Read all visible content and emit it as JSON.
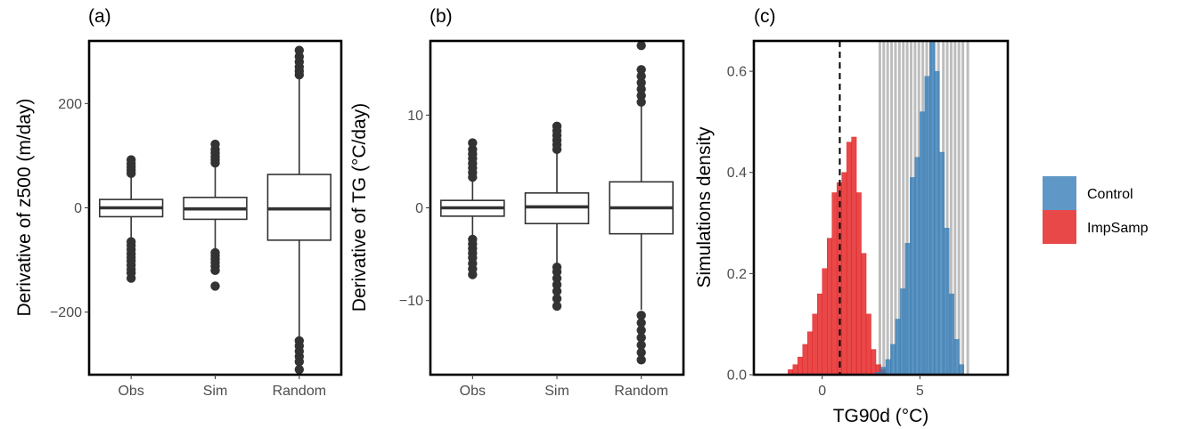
{
  "chart_data": [
    {
      "type": "boxplot",
      "panel": "(a)",
      "ylabel": "Derivative of z500 (m/day)",
      "xlabel": "",
      "ylim": [
        -320,
        320
      ],
      "yticks": [
        -200,
        0,
        200
      ],
      "categories": [
        "Obs",
        "Sim",
        "Random"
      ],
      "boxes": [
        {
          "q1": -17,
          "median": 0,
          "q3": 16,
          "whisker_low": -58,
          "whisker_high": 60,
          "outliers": [
            -135,
            -125,
            -118,
            -110,
            -102,
            -95,
            -88,
            -80,
            -72,
            -65,
            66,
            72,
            78,
            85,
            92
          ]
        },
        {
          "q1": -22,
          "median": -2,
          "q3": 20,
          "whisker_low": -80,
          "whisker_high": 82,
          "outliers": [
            -150,
            -120,
            -112,
            -105,
            -98,
            -92,
            -86,
            86,
            92,
            98,
            105,
            112,
            122
          ]
        },
        {
          "q1": -62,
          "median": -2,
          "q3": 64,
          "whisker_low": -248,
          "whisker_high": 250,
          "outliers": [
            -310,
            -295,
            -285,
            -275,
            -265,
            -255,
            255,
            262,
            270,
            280,
            290,
            302
          ]
        }
      ]
    },
    {
      "type": "boxplot",
      "panel": "(b)",
      "ylabel": "Derivative of TG (°C/day)",
      "xlabel": "",
      "ylim": [
        -18,
        18
      ],
      "yticks": [
        -10,
        0,
        10
      ],
      "categories": [
        "Obs",
        "Sim",
        "Random"
      ],
      "boxes": [
        {
          "q1": -0.9,
          "median": 0,
          "q3": 0.8,
          "whisker_low": -3.0,
          "whisker_high": 3.0,
          "outliers": [
            -7.2,
            -6.6,
            -6.0,
            -5.4,
            -4.9,
            -4.4,
            -3.9,
            -3.4,
            3.3,
            3.8,
            4.3,
            4.8,
            5.3,
            5.8,
            6.3,
            7.0
          ]
        },
        {
          "q1": -1.7,
          "median": 0.1,
          "q3": 1.6,
          "whisker_low": -6.0,
          "whisker_high": 6.0,
          "outliers": [
            -10.6,
            -9.8,
            -9.0,
            -8.3,
            -7.6,
            -6.9,
            -6.4,
            6.3,
            6.8,
            7.3,
            7.8,
            8.3,
            8.8
          ]
        },
        {
          "q1": -2.8,
          "median": 0,
          "q3": 2.8,
          "whisker_low": -11.0,
          "whisker_high": 11.0,
          "outliers": [
            -16.4,
            -15.6,
            -14.8,
            -14.0,
            -13.2,
            -12.4,
            -11.6,
            11.4,
            12.1,
            12.8,
            13.5,
            14.2,
            14.9,
            17.5
          ]
        }
      ]
    },
    {
      "type": "histogram",
      "panel": "(c)",
      "xlabel": "TG90d (°C)",
      "ylabel": "Simulations density",
      "xlim": [
        -3.5,
        9.5
      ],
      "ylim": [
        0,
        0.66
      ],
      "xticks": [
        0,
        5
      ],
      "yticks": [
        0,
        0.2,
        0.4,
        0.6
      ],
      "ytick_labels": [
        "0.0",
        "0.2",
        "0.4",
        "0.6"
      ],
      "bin_width": 0.25,
      "obs_dashed_x": 0.9,
      "gray_vlines": [
        2.95,
        3.15,
        3.35,
        3.55,
        3.75,
        3.95,
        4.15,
        4.35,
        4.55,
        4.75,
        4.95,
        5.15,
        5.35,
        5.55,
        5.75,
        5.95,
        6.2,
        6.4,
        6.6,
        6.8,
        7.0,
        7.2,
        7.45
      ],
      "series": [
        {
          "name": "ImpSamp",
          "color": "#E41A1C",
          "bins": [
            [
              -1.75,
              0.01
            ],
            [
              -1.5,
              0.02
            ],
            [
              -1.25,
              0.035
            ],
            [
              -1.0,
              0.06
            ],
            [
              -0.75,
              0.085
            ],
            [
              -0.5,
              0.12
            ],
            [
              -0.25,
              0.16
            ],
            [
              0.0,
              0.21
            ],
            [
              0.25,
              0.27
            ],
            [
              0.5,
              0.36
            ],
            [
              0.75,
              0.38
            ],
            [
              1.0,
              0.4
            ],
            [
              1.25,
              0.46
            ],
            [
              1.5,
              0.47
            ],
            [
              1.75,
              0.36
            ],
            [
              2.0,
              0.24
            ],
            [
              2.25,
              0.12
            ],
            [
              2.5,
              0.05
            ],
            [
              2.75,
              0.02
            ],
            [
              3.0,
              0.01
            ]
          ]
        },
        {
          "name": "Control",
          "color": "#377EB8",
          "bins": [
            [
              2.75,
              0.005
            ],
            [
              3.0,
              0.015
            ],
            [
              3.25,
              0.03
            ],
            [
              3.5,
              0.06
            ],
            [
              3.75,
              0.11
            ],
            [
              4.0,
              0.17
            ],
            [
              4.25,
              0.26
            ],
            [
              4.5,
              0.39
            ],
            [
              4.75,
              0.43
            ],
            [
              5.0,
              0.52
            ],
            [
              5.25,
              0.59
            ],
            [
              5.5,
              0.66
            ],
            [
              5.75,
              0.6
            ],
            [
              6.0,
              0.44
            ],
            [
              6.25,
              0.29
            ],
            [
              6.5,
              0.16
            ],
            [
              6.75,
              0.07
            ],
            [
              7.0,
              0.02
            ]
          ]
        }
      ],
      "legend": {
        "position": "right",
        "entries": [
          "Control",
          "ImpSamp"
        ]
      }
    }
  ]
}
